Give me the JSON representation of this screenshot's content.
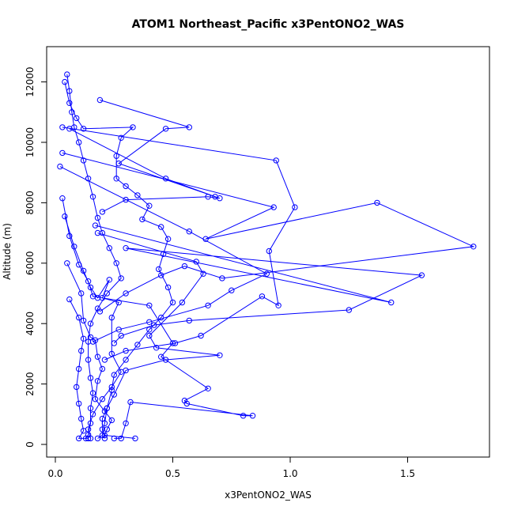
{
  "chart_data": {
    "type": "line",
    "title": "ATOM1 Northeast_Pacific x3PentONO2_WAS",
    "xlabel": "x3PentONO2_WAS",
    "ylabel": "Altitude (m)",
    "xlim": [
      0,
      1.8
    ],
    "ylim": [
      0,
      12300
    ],
    "x_ticks": [
      0.0,
      0.5,
      1.0,
      1.5
    ],
    "x_tick_labels": [
      "0.0",
      "0.5",
      "1.0",
      "1.5"
    ],
    "y_ticks": [
      0,
      2000,
      4000,
      6000,
      8000,
      10000,
      12000
    ],
    "y_tick_labels": [
      "0",
      "2000",
      "4000",
      "6000",
      "8000",
      "10000",
      "12000"
    ],
    "grid": false,
    "legend": "none",
    "colors": {
      "series": "#0000ff",
      "axis": "#000000",
      "background": "#ffffff"
    },
    "series": [
      {
        "points": [
          [
            0.05,
            12250
          ],
          [
            0.06,
            11700
          ],
          [
            0.07,
            11000
          ],
          [
            0.08,
            10500
          ],
          [
            0.1,
            10000
          ],
          [
            0.12,
            9400
          ],
          [
            0.14,
            8800
          ],
          [
            0.16,
            8200
          ],
          [
            0.18,
            7500
          ],
          [
            0.2,
            7000
          ],
          [
            0.23,
            6500
          ],
          [
            0.26,
            6000
          ],
          [
            0.28,
            5500
          ],
          [
            0.22,
            5000
          ],
          [
            0.18,
            4500
          ],
          [
            0.15,
            4000
          ],
          [
            0.14,
            3400
          ],
          [
            0.14,
            2800
          ],
          [
            0.15,
            2200
          ],
          [
            0.16,
            1700
          ],
          [
            0.15,
            1200
          ],
          [
            0.15,
            700
          ],
          [
            0.14,
            320
          ],
          [
            0.13,
            200
          ]
        ]
      },
      {
        "points": [
          [
            0.04,
            12000
          ],
          [
            0.06,
            11300
          ],
          [
            0.09,
            10800
          ],
          [
            0.12,
            10450
          ],
          [
            0.33,
            10500
          ],
          [
            0.28,
            10150
          ],
          [
            0.26,
            9550
          ],
          [
            0.26,
            8800
          ],
          [
            0.3,
            8550
          ],
          [
            0.35,
            8250
          ],
          [
            0.4,
            7900
          ],
          [
            0.37,
            7450
          ],
          [
            0.45,
            7200
          ],
          [
            0.48,
            6800
          ],
          [
            0.46,
            6300
          ],
          [
            0.44,
            5800
          ],
          [
            0.48,
            5200
          ],
          [
            0.5,
            4700
          ],
          [
            0.45,
            4200
          ],
          [
            0.4,
            3800
          ],
          [
            0.35,
            3300
          ],
          [
            0.3,
            2800
          ],
          [
            0.25,
            2300
          ],
          [
            0.24,
            1800
          ],
          [
            0.22,
            1200
          ],
          [
            0.21,
            700
          ],
          [
            0.2,
            300
          ],
          [
            0.18,
            200
          ]
        ]
      },
      {
        "points": [
          [
            0.19,
            11400
          ],
          [
            0.57,
            10500
          ],
          [
            0.47,
            10450
          ],
          [
            0.27,
            9300
          ],
          [
            0.7,
            8150
          ],
          [
            0.65,
            8200
          ],
          [
            0.3,
            8100
          ],
          [
            0.2,
            7700
          ]
        ]
      },
      {
        "points": [
          [
            0.03,
            10500
          ],
          [
            0.94,
            9400
          ],
          [
            1.02,
            7850
          ],
          [
            0.91,
            6400
          ],
          [
            0.95,
            4600
          ],
          [
            0.88,
            4900
          ],
          [
            0.62,
            3600
          ],
          [
            0.51,
            3350
          ],
          [
            0.3,
            3100
          ],
          [
            0.21,
            2800
          ]
        ]
      },
      {
        "points": [
          [
            0.06,
            10450
          ],
          [
            0.47,
            8800
          ],
          [
            0.68,
            8200
          ]
        ]
      },
      {
        "points": [
          [
            0.03,
            9650
          ],
          [
            0.93,
            7850
          ],
          [
            0.64,
            6800
          ],
          [
            1.37,
            8000
          ],
          [
            1.78,
            6550
          ],
          [
            0.71,
            5500
          ],
          [
            0.55,
            5900
          ],
          [
            0.45,
            5600
          ],
          [
            0.3,
            5000
          ],
          [
            0.19,
            4400
          ]
        ]
      },
      {
        "points": [
          [
            0.02,
            9200
          ],
          [
            0.57,
            7050
          ],
          [
            0.9,
            5650
          ],
          [
            0.75,
            5100
          ],
          [
            0.65,
            4600
          ],
          [
            0.4,
            4050
          ],
          [
            0.27,
            3800
          ],
          [
            0.16,
            3400
          ]
        ]
      },
      {
        "points": [
          [
            0.17,
            7250
          ],
          [
            1.43,
            4700
          ],
          [
            0.3,
            6500
          ],
          [
            1.56,
            5600
          ],
          [
            1.25,
            4450
          ],
          [
            0.57,
            4100
          ],
          [
            0.42,
            3950
          ],
          [
            0.28,
            3600
          ],
          [
            0.25,
            3350
          ]
        ]
      },
      {
        "points": [
          [
            0.18,
            7000
          ],
          [
            0.6,
            6050
          ],
          [
            0.63,
            5650
          ],
          [
            0.54,
            4700
          ],
          [
            0.4,
            3600
          ],
          [
            0.43,
            3200
          ],
          [
            0.7,
            2950
          ],
          [
            0.47,
            2800
          ],
          [
            0.3,
            2450
          ],
          [
            0.25,
            1650
          ],
          [
            0.22,
            1200
          ],
          [
            0.2,
            850
          ],
          [
            0.2,
            500
          ],
          [
            0.21,
            200
          ]
        ]
      },
      {
        "points": [
          [
            0.03,
            8150
          ],
          [
            0.06,
            6900
          ],
          [
            0.1,
            5950
          ],
          [
            0.14,
            5400
          ],
          [
            0.16,
            4900
          ],
          [
            0.4,
            4600
          ],
          [
            0.5,
            3350
          ],
          [
            0.45,
            2900
          ],
          [
            0.65,
            1850
          ],
          [
            0.55,
            1450
          ],
          [
            0.56,
            1350
          ],
          [
            0.8,
            950
          ],
          [
            0.84,
            950
          ],
          [
            0.32,
            1400
          ],
          [
            0.3,
            700
          ],
          [
            0.28,
            200
          ],
          [
            0.25,
            200
          ]
        ]
      },
      {
        "points": [
          [
            0.04,
            7550
          ],
          [
            0.08,
            6550
          ],
          [
            0.12,
            5750
          ],
          [
            0.15,
            5200
          ],
          [
            0.18,
            4850
          ],
          [
            0.23,
            5450
          ],
          [
            0.2,
            4850
          ],
          [
            0.27,
            4700
          ],
          [
            0.24,
            4200
          ],
          [
            0.24,
            3000
          ],
          [
            0.28,
            2400
          ],
          [
            0.24,
            1900
          ],
          [
            0.2,
            1500
          ],
          [
            0.16,
            1000
          ],
          [
            0.14,
            500
          ],
          [
            0.15,
            200
          ]
        ]
      },
      {
        "points": [
          [
            0.06,
            4800
          ],
          [
            0.1,
            4200
          ],
          [
            0.12,
            3500
          ],
          [
            0.11,
            3100
          ],
          [
            0.1,
            2500
          ],
          [
            0.09,
            1900
          ],
          [
            0.1,
            1350
          ],
          [
            0.11,
            850
          ],
          [
            0.12,
            450
          ],
          [
            0.1,
            200
          ],
          [
            0.14,
            200
          ]
        ]
      },
      {
        "points": [
          [
            0.05,
            6000
          ],
          [
            0.11,
            5000
          ],
          [
            0.12,
            4100
          ],
          [
            0.15,
            3550
          ],
          [
            0.17,
            3450
          ],
          [
            0.18,
            2900
          ],
          [
            0.2,
            2500
          ],
          [
            0.18,
            2100
          ],
          [
            0.17,
            1500
          ],
          [
            0.21,
            1100
          ],
          [
            0.24,
            800
          ],
          [
            0.22,
            500
          ],
          [
            0.21,
            300
          ],
          [
            0.34,
            200
          ]
        ]
      }
    ]
  }
}
